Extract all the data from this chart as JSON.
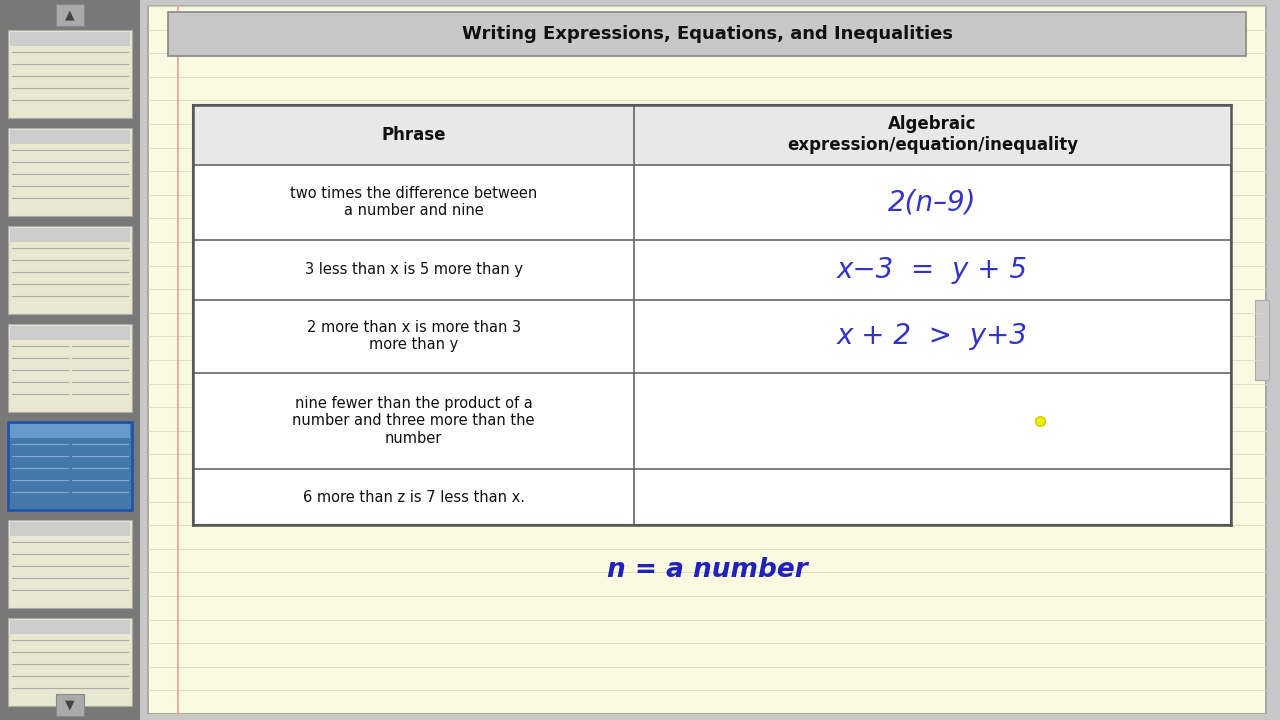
{
  "title": "Writing Expressions, Equations, and Inequalities",
  "title_fontsize": 13,
  "background_color": "#FAFAE0",
  "outer_bg": "#C8C8C8",
  "table_header_bg": "#E8E8E8",
  "table_bg": "#FFFFFF",
  "header_col1": "Phrase",
  "header_col2": "Algebraic\nexpression/equation/inequality",
  "rows": [
    {
      "phrase": "two times the difference between\na number and nine",
      "algebraic": "2(n–9)",
      "align": "center"
    },
    {
      "phrase": "3 less than x is 5 more than y",
      "algebraic": "x−3  =  y + 5",
      "align": "center"
    },
    {
      "phrase": "2 more than x is more than 3\nmore than y",
      "algebraic": "x + 2  >  y+3",
      "align": "center"
    },
    {
      "phrase": "nine fewer than the product of a\nnumber and three more than the\nnumber",
      "algebraic": "",
      "align": "center"
    },
    {
      "phrase": "6 more than z is 7 less than x.",
      "algebraic": "",
      "align": "left"
    }
  ],
  "footer_text": "n = a number",
  "footer_color": "#2222BB",
  "handwriting_color": "#3333CC",
  "text_color": "#111111",
  "dot_color": "#EEEE00",
  "title_bg": "#C8C8C8",
  "title_border": "#888888",
  "paper_line_color": "#D0DDB8",
  "paper_margin_color": "#E8A0A0",
  "thumb_bg": "#E8E8D0",
  "thumb_border": "#AAAAAA",
  "left_panel_bg": "#787878",
  "left_panel_border": "#555555",
  "scroll_btn_color": "#AAAAAA"
}
